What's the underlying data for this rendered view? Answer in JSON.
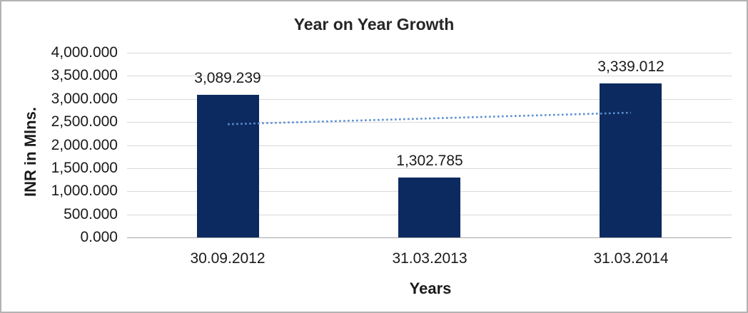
{
  "chart_data": {
    "type": "bar",
    "title": "Year on Year Growth",
    "xlabel": "Years",
    "ylabel": "INR in Mlns.",
    "categories": [
      "30.09.2012",
      "31.03.2013",
      "31.03.2014"
    ],
    "values": [
      3089.239,
      1302.785,
      3339.012
    ],
    "value_labels": [
      "3,089.239",
      "1,302.785",
      "3,339.012"
    ],
    "ylim": [
      0,
      4000
    ],
    "ytick_step": 500,
    "ytick_labels": [
      "0.000",
      "500.000",
      "1,000.000",
      "1,500.000",
      "2,000.000",
      "2,500.000",
      "3,000.000",
      "3,500.000",
      "4,000.000"
    ],
    "grid": true,
    "legend": "none",
    "colors": {
      "bar": "#0c2a5f",
      "trendline": "#5b8fd0",
      "gridline": "#d9d9d9",
      "axis_line": "#a6a6a6",
      "text": "#1a1a1a",
      "title_text": "#262626",
      "frame_border": "#b3b3b3",
      "background": "#ffffff"
    },
    "trendline": {
      "style": "dotted",
      "start_value": 2452.1,
      "end_value": 2701.9
    }
  }
}
